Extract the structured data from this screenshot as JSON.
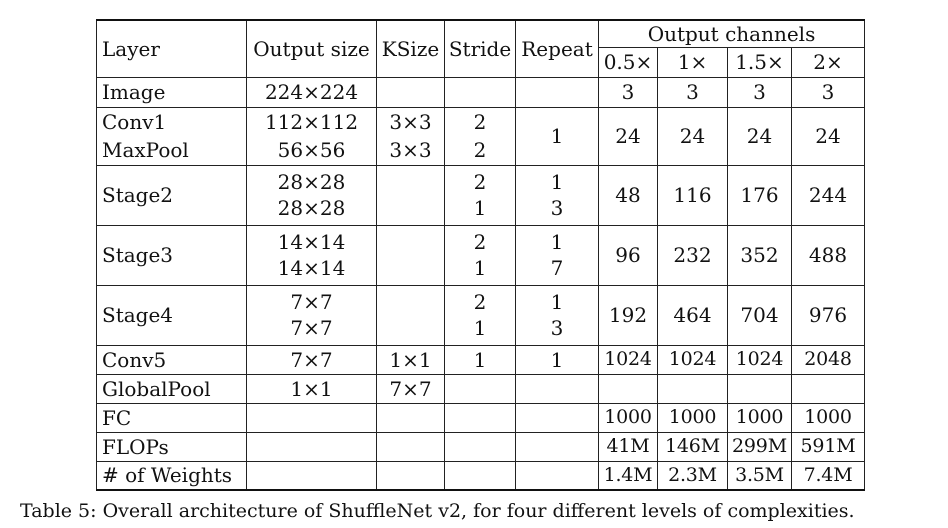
{
  "table": {
    "headers": {
      "layer": "Layer",
      "output_size": "Output size",
      "ksize": "KSize",
      "stride": "Stride",
      "repeat": "Repeat",
      "output_channels": "Output channels",
      "complexities": [
        "0.5×",
        "1×",
        "1.5×",
        "2×"
      ]
    },
    "rows": {
      "image": {
        "layer": "Image",
        "output_size": "224×224",
        "channels": [
          "3",
          "3",
          "3",
          "3"
        ]
      },
      "conv1": {
        "layer": "Conv1",
        "output_size": "112×112",
        "ksize": "3×3",
        "stride": "2"
      },
      "maxpool": {
        "layer": "MaxPool",
        "output_size": "56×56",
        "ksize": "3×3",
        "stride": "2"
      },
      "conv1_pool": {
        "repeat": "1",
        "channels": [
          "24",
          "24",
          "24",
          "24"
        ]
      },
      "stage2": {
        "layer": "Stage2",
        "output_size": [
          "28×28",
          "28×28"
        ],
        "stride": [
          "2",
          "1"
        ],
        "repeat": [
          "1",
          "3"
        ],
        "channels": [
          "48",
          "116",
          "176",
          "244"
        ]
      },
      "stage3": {
        "layer": "Stage3",
        "output_size": [
          "14×14",
          "14×14"
        ],
        "stride": [
          "2",
          "1"
        ],
        "repeat": [
          "1",
          "7"
        ],
        "channels": [
          "96",
          "232",
          "352",
          "488"
        ]
      },
      "stage4": {
        "layer": "Stage4",
        "output_size": [
          "7×7",
          "7×7"
        ],
        "stride": [
          "2",
          "1"
        ],
        "repeat": [
          "1",
          "3"
        ],
        "channels": [
          "192",
          "464",
          "704",
          "976"
        ]
      },
      "conv5": {
        "layer": "Conv5",
        "output_size": "7×7",
        "ksize": "1×1",
        "stride": "1",
        "repeat": "1",
        "channels": [
          "1024",
          "1024",
          "1024",
          "2048"
        ]
      },
      "globalpool": {
        "layer": "GlobalPool",
        "output_size": "1×1",
        "ksize": "7×7"
      },
      "fc": {
        "layer": "FC",
        "channels": [
          "1000",
          "1000",
          "1000",
          "1000"
        ]
      },
      "flops": {
        "layer": "FLOPs",
        "channels": [
          "41M",
          "146M",
          "299M",
          "591M"
        ]
      },
      "weights": {
        "layer": "# of Weights",
        "channels": [
          "1.4M",
          "2.3M",
          "3.5M",
          "7.4M"
        ]
      }
    }
  },
  "caption": "Table 5: Overall architecture of ShuffleNet v2, for four different levels of complexities."
}
